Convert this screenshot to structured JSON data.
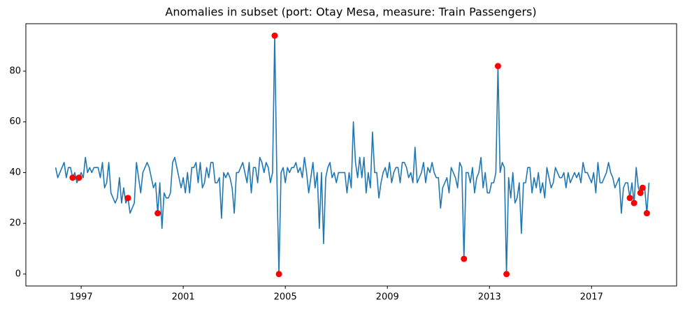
{
  "chart_data": {
    "type": "line",
    "title": "Anomalies in subset (port: Otay Mesa, measure: Train Passengers)",
    "color": "#1f77b4",
    "x": [
      "1996-01",
      "1996-02",
      "1996-03",
      "1996-04",
      "1996-05",
      "1996-06",
      "1996-07",
      "1996-08",
      "1996-09",
      "1996-10",
      "1996-11",
      "1996-12",
      "1997-01",
      "1997-02",
      "1997-03",
      "1997-04",
      "1997-05",
      "1997-06",
      "1997-07",
      "1997-08",
      "1997-09",
      "1997-10",
      "1997-11",
      "1997-12",
      "1998-01",
      "1998-02",
      "1998-03",
      "1998-04",
      "1998-05",
      "1998-06",
      "1998-07",
      "1998-08",
      "1998-09",
      "1998-10",
      "1998-11",
      "1998-12",
      "1999-01",
      "1999-02",
      "1999-03",
      "1999-04",
      "1999-05",
      "1999-06",
      "1999-07",
      "1999-08",
      "1999-09",
      "1999-10",
      "1999-11",
      "1999-12",
      "2000-01",
      "2000-02",
      "2000-03",
      "2000-04",
      "2000-05",
      "2000-06",
      "2000-07",
      "2000-08",
      "2000-09",
      "2000-10",
      "2000-11",
      "2000-12",
      "2001-01",
      "2001-02",
      "2001-03",
      "2001-04",
      "2001-05",
      "2001-06",
      "2001-07",
      "2001-08",
      "2001-09",
      "2001-10",
      "2001-11",
      "2001-12",
      "2002-01",
      "2002-02",
      "2002-03",
      "2002-04",
      "2002-05",
      "2002-06",
      "2002-07",
      "2002-08",
      "2002-09",
      "2002-10",
      "2002-11",
      "2002-12",
      "2003-01",
      "2003-02",
      "2003-03",
      "2003-04",
      "2003-05",
      "2003-06",
      "2003-07",
      "2003-08",
      "2003-09",
      "2003-10",
      "2003-11",
      "2003-12",
      "2004-01",
      "2004-02",
      "2004-03",
      "2004-04",
      "2004-05",
      "2004-06",
      "2004-07",
      "2004-08",
      "2004-09",
      "2004-10",
      "2004-11",
      "2004-12",
      "2005-01",
      "2005-02",
      "2005-03",
      "2005-04",
      "2005-05",
      "2005-06",
      "2005-07",
      "2005-08",
      "2005-09",
      "2005-10",
      "2005-11",
      "2005-12",
      "2006-01",
      "2006-02",
      "2006-03",
      "2006-04",
      "2006-05",
      "2006-06",
      "2006-07",
      "2006-08",
      "2006-09",
      "2006-10",
      "2006-11",
      "2006-12",
      "2007-01",
      "2007-02",
      "2007-03",
      "2007-04",
      "2007-05",
      "2007-06",
      "2007-07",
      "2007-08",
      "2007-09",
      "2007-10",
      "2007-11",
      "2007-12",
      "2008-01",
      "2008-02",
      "2008-03",
      "2008-04",
      "2008-05",
      "2008-06",
      "2008-07",
      "2008-08",
      "2008-09",
      "2008-10",
      "2008-11",
      "2008-12",
      "2009-01",
      "2009-02",
      "2009-03",
      "2009-04",
      "2009-05",
      "2009-06",
      "2009-07",
      "2009-08",
      "2009-09",
      "2009-10",
      "2009-11",
      "2009-12",
      "2010-01",
      "2010-02",
      "2010-03",
      "2010-04",
      "2010-05",
      "2010-06",
      "2010-07",
      "2010-08",
      "2010-09",
      "2010-10",
      "2010-11",
      "2010-12",
      "2011-01",
      "2011-02",
      "2011-03",
      "2011-04",
      "2011-05",
      "2011-06",
      "2011-07",
      "2011-08",
      "2011-09",
      "2011-10",
      "2011-11",
      "2011-12",
      "2012-01",
      "2012-02",
      "2012-03",
      "2012-04",
      "2012-05",
      "2012-06",
      "2012-07",
      "2012-08",
      "2012-09",
      "2012-10",
      "2012-11",
      "2012-12",
      "2013-01",
      "2013-02",
      "2013-03",
      "2013-04",
      "2013-05",
      "2013-06",
      "2013-07",
      "2013-08",
      "2013-09",
      "2013-10",
      "2013-11",
      "2013-12",
      "2014-01",
      "2014-02",
      "2014-03",
      "2014-04",
      "2014-05",
      "2014-06",
      "2014-07",
      "2014-08",
      "2014-09",
      "2014-10",
      "2014-11",
      "2014-12",
      "2015-01",
      "2015-02",
      "2015-03",
      "2015-04",
      "2015-05",
      "2015-06",
      "2015-07",
      "2015-08",
      "2015-09",
      "2015-10",
      "2015-11",
      "2015-12",
      "2016-01",
      "2016-02",
      "2016-03",
      "2016-04",
      "2016-05",
      "2016-06",
      "2016-07",
      "2016-08",
      "2016-09",
      "2016-10",
      "2016-11",
      "2016-12",
      "2017-01",
      "2017-02",
      "2017-03",
      "2017-04",
      "2017-05",
      "2017-06",
      "2017-07",
      "2017-08",
      "2017-09",
      "2017-10",
      "2017-11",
      "2017-12",
      "2018-01",
      "2018-02",
      "2018-03",
      "2018-04",
      "2018-05",
      "2018-06",
      "2018-07",
      "2018-08",
      "2018-09",
      "2018-10",
      "2018-11",
      "2018-12",
      "2019-01",
      "2019-02",
      "2019-03",
      "2019-04"
    ],
    "values": [
      42,
      38,
      40,
      42,
      44,
      38,
      42,
      42,
      38,
      40,
      36,
      38,
      40,
      38,
      46,
      40,
      42,
      40,
      42,
      42,
      42,
      38,
      44,
      34,
      36,
      44,
      32,
      30,
      28,
      30,
      38,
      28,
      34,
      28,
      30,
      24,
      26,
      28,
      44,
      38,
      32,
      40,
      42,
      44,
      42,
      38,
      34,
      36,
      24,
      36,
      18,
      32,
      30,
      30,
      32,
      44,
      46,
      42,
      38,
      34,
      38,
      32,
      40,
      32,
      42,
      42,
      44,
      36,
      44,
      34,
      36,
      42,
      38,
      44,
      44,
      36,
      36,
      38,
      22,
      40,
      38,
      40,
      38,
      34,
      24,
      40,
      40,
      42,
      44,
      40,
      36,
      44,
      32,
      42,
      42,
      36,
      46,
      44,
      40,
      44,
      42,
      36,
      40,
      94,
      40,
      0,
      40,
      42,
      36,
      42,
      40,
      42,
      42,
      44,
      40,
      42,
      38,
      46,
      40,
      32,
      38,
      44,
      34,
      40,
      18,
      40,
      12,
      38,
      42,
      44,
      38,
      40,
      36,
      40,
      40,
      40,
      40,
      32,
      40,
      34,
      60,
      44,
      38,
      46,
      38,
      46,
      32,
      40,
      34,
      56,
      40,
      40,
      30,
      36,
      40,
      42,
      38,
      44,
      36,
      40,
      42,
      42,
      36,
      44,
      44,
      42,
      38,
      40,
      36,
      50,
      36,
      38,
      40,
      44,
      36,
      42,
      40,
      44,
      40,
      38,
      38,
      26,
      34,
      36,
      38,
      32,
      42,
      40,
      38,
      34,
      44,
      42,
      6,
      40,
      40,
      36,
      42,
      32,
      38,
      40,
      46,
      34,
      40,
      32,
      32,
      36,
      36,
      40,
      82,
      40,
      44,
      42,
      0,
      38,
      30,
      40,
      28,
      30,
      36,
      16,
      36,
      36,
      42,
      42,
      32,
      38,
      34,
      40,
      32,
      36,
      30,
      42,
      38,
      34,
      36,
      42,
      40,
      38,
      38,
      40,
      34,
      40,
      36,
      38,
      40,
      38,
      40,
      36,
      44,
      40,
      40,
      38,
      36,
      40,
      32,
      44,
      36,
      36,
      38,
      40,
      44,
      40,
      38,
      34,
      36,
      38,
      24,
      34,
      36,
      36,
      30,
      36,
      28,
      42,
      34,
      32,
      34,
      34,
      24,
      36
    ],
    "anomalies": {
      "color": "#ff0000",
      "x": [
        "1996-09",
        "1996-12",
        "1998-11",
        "2000-01",
        "2004-08",
        "2004-10",
        "2012-01",
        "2013-05",
        "2013-09",
        "2018-07",
        "2018-09",
        "2018-12",
        "2019-01",
        "2019-03"
      ],
      "values": [
        38,
        38,
        30,
        24,
        94,
        0,
        6,
        82,
        0,
        30,
        28,
        32,
        34,
        24
      ]
    },
    "xlim": [
      "1994-11",
      "2020-05"
    ],
    "xticks": [
      1997,
      2001,
      2005,
      2009,
      2013,
      2017
    ],
    "ylim": [
      -4.7,
      98.7
    ],
    "yticks": [
      0,
      20,
      40,
      60,
      80
    ]
  }
}
